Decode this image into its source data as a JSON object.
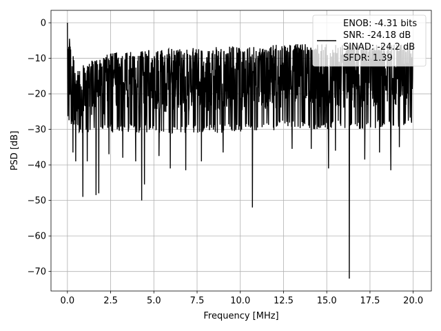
{
  "chart_data": {
    "type": "line",
    "title": "",
    "xlabel": "Frequency [MHz]",
    "ylabel": "PSD [dB]",
    "xlim": [
      -0.95,
      21.05
    ],
    "ylim": [
      -75.5,
      3.5
    ],
    "xticks": [
      0.0,
      2.5,
      5.0,
      7.5,
      10.0,
      12.5,
      15.0,
      17.5,
      20.0
    ],
    "xtick_labels": [
      "0.0",
      "2.5",
      "5.0",
      "7.5",
      "10.0",
      "12.5",
      "15.0",
      "17.5",
      "20.0"
    ],
    "yticks": [
      0,
      -10,
      -20,
      -30,
      -40,
      -50,
      -60,
      -70
    ],
    "ytick_labels": [
      "0",
      "−10",
      "−20",
      "−30",
      "−40",
      "−50",
      "−60",
      "−70"
    ],
    "grid": true,
    "legend_position": "top-right",
    "legend_lines": [
      "ENOB: -4.31 bits",
      "SNR: -24.18 dB",
      "SINAD: -24.2 dB",
      "SFDR: 1.39"
    ],
    "series": [
      {
        "color": "#000000",
        "envelope": {
          "x": [
            0.0,
            0.5,
            1.0,
            2.5,
            5.0,
            7.5,
            10.0,
            12.5,
            15.0,
            17.5,
            20.0
          ],
          "upper": [
            0.0,
            -13.0,
            -11.5,
            -8.5,
            -7.5,
            -7.0,
            -6.5,
            -6.0,
            -6.0,
            -6.0,
            -6.0
          ],
          "lower": [
            -28.0,
            -30.0,
            -32.0,
            -31.0,
            -31.0,
            -31.0,
            -31.0,
            -30.0,
            -30.0,
            -30.0,
            -29.0
          ]
        },
        "dips": [
          {
            "x": 0.32,
            "y": -36.5
          },
          {
            "x": 0.48,
            "y": -39.0
          },
          {
            "x": 0.9,
            "y": -49.0
          },
          {
            "x": 1.15,
            "y": -39.0
          },
          {
            "x": 1.65,
            "y": -48.5
          },
          {
            "x": 1.82,
            "y": -48.0
          },
          {
            "x": 2.4,
            "y": -37.0
          },
          {
            "x": 3.2,
            "y": -38.0
          },
          {
            "x": 3.95,
            "y": -39.0
          },
          {
            "x": 4.3,
            "y": -50.0
          },
          {
            "x": 4.45,
            "y": -45.5
          },
          {
            "x": 5.3,
            "y": -37.5
          },
          {
            "x": 5.95,
            "y": -41.0
          },
          {
            "x": 6.85,
            "y": -41.5
          },
          {
            "x": 7.75,
            "y": -39.0
          },
          {
            "x": 9.0,
            "y": -36.5
          },
          {
            "x": 10.7,
            "y": -52.0
          },
          {
            "x": 13.0,
            "y": -35.5
          },
          {
            "x": 14.1,
            "y": -35.5
          },
          {
            "x": 15.1,
            "y": -41.0
          },
          {
            "x": 15.5,
            "y": -36.0
          },
          {
            "x": 16.3,
            "y": -72.0
          },
          {
            "x": 17.2,
            "y": -38.5
          },
          {
            "x": 18.05,
            "y": -36.5
          },
          {
            "x": 18.7,
            "y": -41.5
          },
          {
            "x": 19.2,
            "y": -35.0
          }
        ]
      }
    ]
  }
}
